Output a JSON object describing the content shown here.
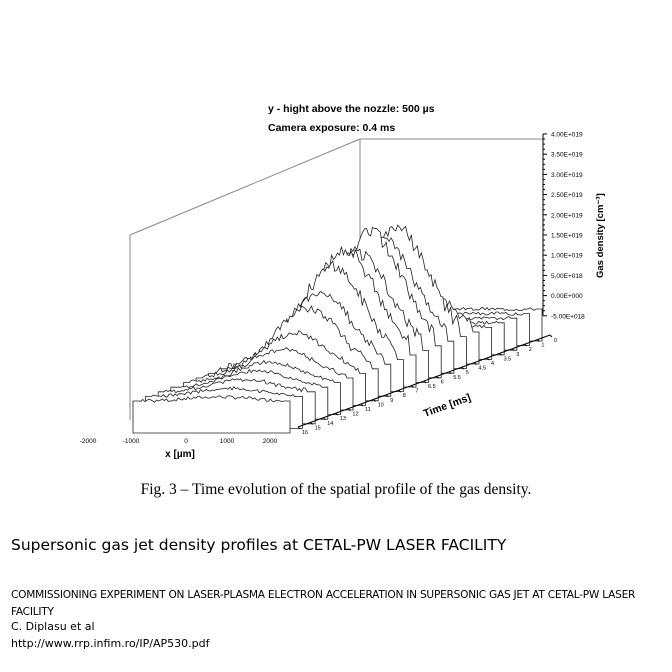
{
  "figure": {
    "annotation_line1": "y - hight above the nozzle: 500 µs",
    "annotation_line2": "Camera exposure: 0.4 ms",
    "caption": "Fig. 3 – Time evolution of the spatial profile of the gas density."
  },
  "chart_data": {
    "type": "3d-waterfall",
    "xlabel": "x [µm]",
    "x_ticks": [
      "-2000",
      "-1000",
      "0",
      "1000",
      "2000"
    ],
    "ylabel": "Time [ms]",
    "time_ticks": [
      "0",
      "1",
      "2",
      "3",
      "3.5",
      "4",
      "4.5",
      "5",
      "5.5",
      "6",
      "6.5",
      "7",
      "8",
      "9",
      "10",
      "11",
      "12",
      "13",
      "14",
      "15",
      "16"
    ],
    "zlabel": "Gas density [cm⁻³]",
    "z_ticks": [
      "4.00E+019",
      "3.50E+019",
      "3.00E+019",
      "2.50E+019",
      "2.00E+019",
      "1.50E+019",
      "1.00E+019",
      "5.00E+018",
      "0.00E+000",
      "-5.00E+018"
    ],
    "zlim": [
      -5e+18,
      4e+19
    ],
    "series_peak_density": [
      0,
      0,
      0,
      0,
      1.5e+18,
      1.6e+19,
      2.7e+19,
      2.5e+19,
      2.8e+19,
      2.4e+19,
      2.6e+19,
      2.3e+19,
      1.8e+19,
      1.5e+19,
      1e+19,
      7e+18,
      5e+18,
      4e+18,
      3e+18,
      2e+18,
      1e+18
    ]
  },
  "slide": {
    "title": "Supersonic gas jet density profiles at CETAL-PW  LASER FACILITY"
  },
  "reference": {
    "title": "COMMISSIONING EXPERIMENT ON LASER-PLASMA ELECTRON ACCELERATION IN SUPERSONIC GAS JET AT CETAL-PW LASER FACILITY",
    "authors": "C. Diplasu et al",
    "url": "http://www.rrp.infim.ro/IP/AP530.pdf"
  }
}
